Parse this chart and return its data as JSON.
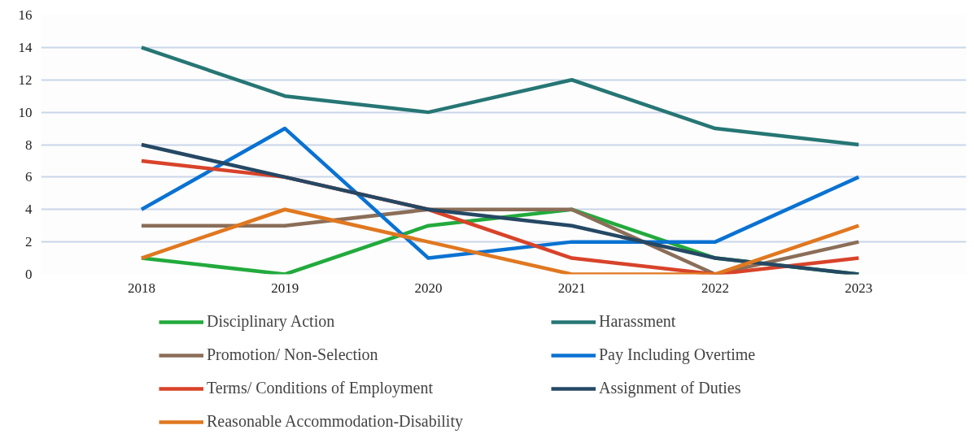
{
  "chart_data": {
    "type": "line",
    "categories": [
      "2018",
      "2019",
      "2020",
      "2021",
      "2022",
      "2023"
    ],
    "ylim": [
      0,
      16
    ],
    "yticks": [
      0,
      2,
      4,
      6,
      8,
      10,
      12,
      14,
      16
    ],
    "grid": "y",
    "legend": "bottom",
    "marker": "none",
    "line_style": "solid",
    "series": [
      {
        "name": "Disciplinary Action",
        "color": "#22aa3c",
        "values": [
          1,
          0,
          3,
          4,
          1,
          0
        ]
      },
      {
        "name": "Harassment",
        "color": "#267674",
        "values": [
          14,
          11,
          10,
          12,
          9,
          8
        ]
      },
      {
        "name": "Promotion/ Non-Selection",
        "color": "#8b6e58",
        "values": [
          3,
          3,
          4,
          4,
          0,
          2
        ]
      },
      {
        "name": "Pay Including Overtime",
        "color": "#0a72d2",
        "values": [
          4,
          9,
          1,
          2,
          2,
          6
        ]
      },
      {
        "name": "Terms/ Conditions of Employment",
        "color": "#d8432a",
        "values": [
          7,
          6,
          4,
          1,
          0,
          1
        ]
      },
      {
        "name": "Assignment of Duties",
        "color": "#254864",
        "values": [
          8,
          6,
          4,
          3,
          1,
          0
        ]
      },
      {
        "name": "Reasonable Accommodation-Disability",
        "color": "#e07820",
        "values": [
          1,
          4,
          2,
          0,
          0,
          3
        ]
      }
    ]
  }
}
